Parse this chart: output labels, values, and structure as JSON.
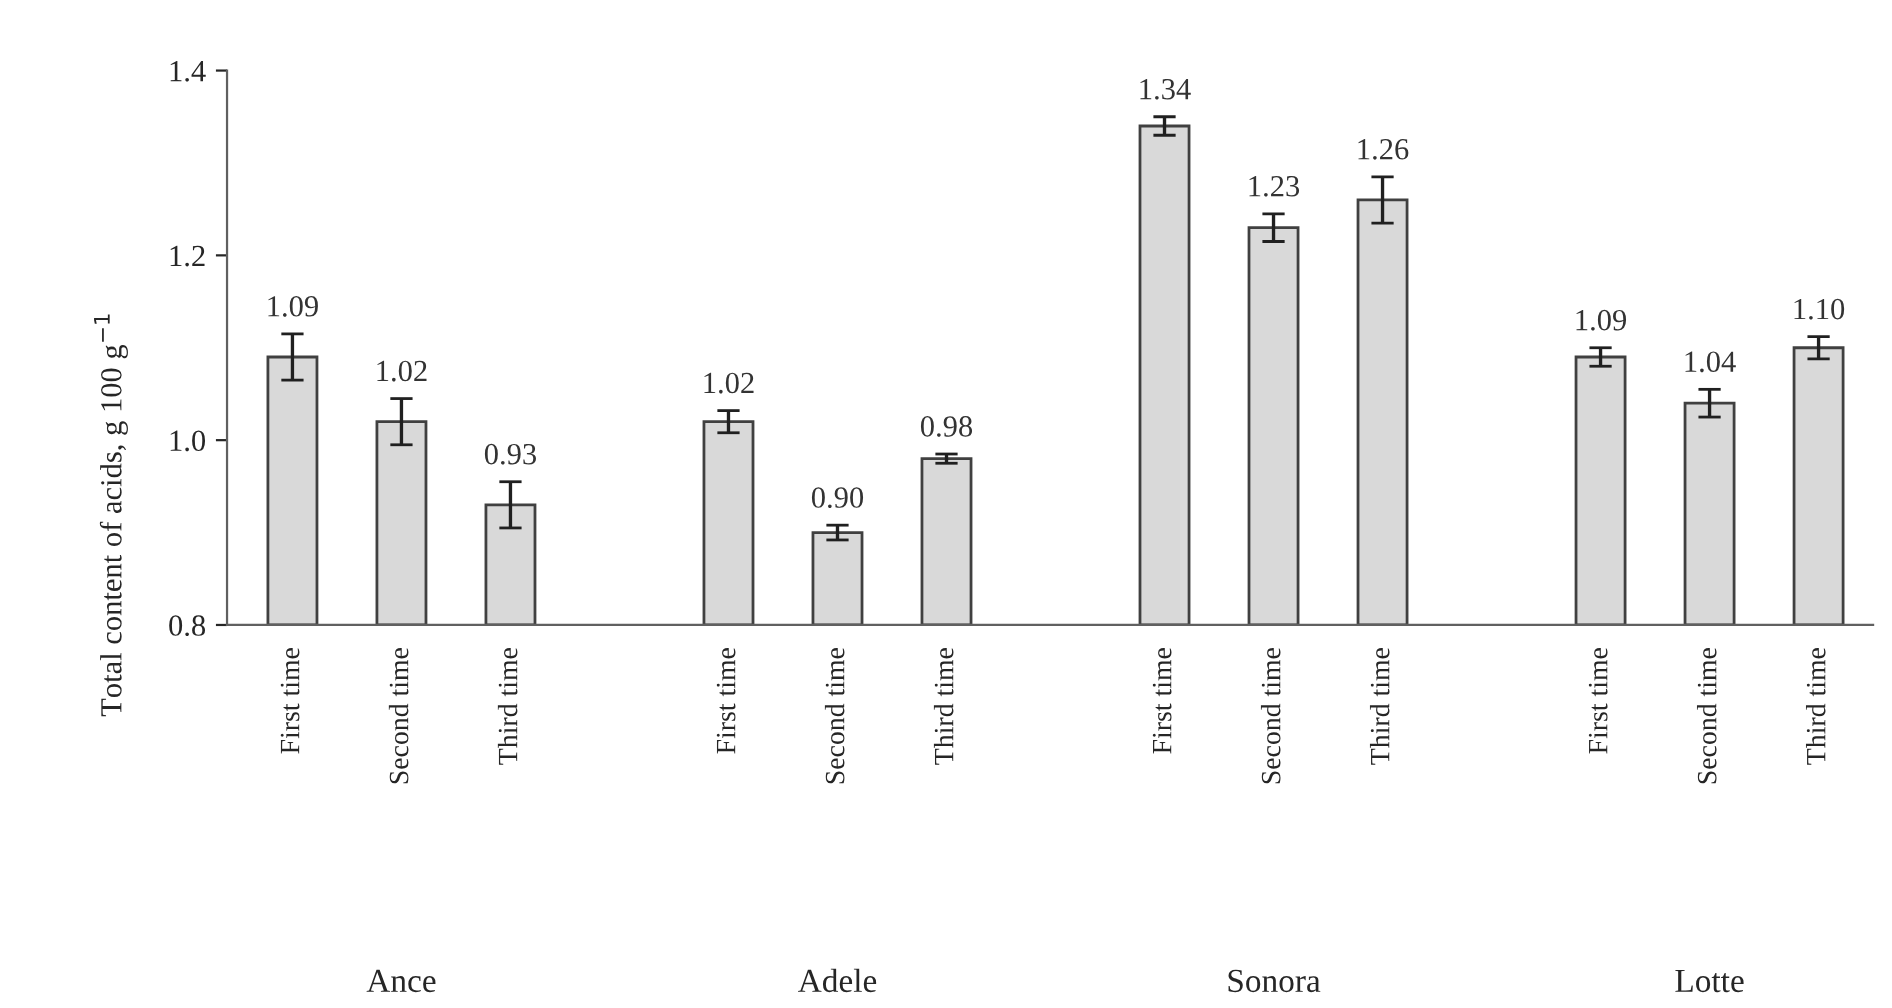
{
  "chart_data": {
    "type": "bar",
    "ylabel": "Total content of acids, g 100 g$^{−1}$",
    "categories": [
      "First time",
      "Second time",
      "Third time",
      null,
      "First time",
      "Second time",
      "Third time",
      null,
      "First time",
      "Second time",
      "Third time",
      null,
      "First time",
      "Second time",
      "Third time"
    ],
    "values": [
      1.09,
      1.02,
      0.93,
      null,
      1.02,
      0.9,
      0.98,
      null,
      1.34,
      1.23,
      1.26,
      null,
      1.09,
      1.04,
      1.1
    ],
    "errors": [
      0.025,
      0.025,
      0.025,
      null,
      0.012,
      0.008,
      0.005,
      null,
      0.01,
      0.015,
      0.025,
      null,
      0.01,
      0.015,
      0.012
    ],
    "value_labels": [
      "1.09",
      "1.02",
      "0.93",
      null,
      "1.02",
      "0.90",
      "0.98",
      null,
      "1.34",
      "1.23",
      "1.26",
      null,
      "1.09",
      "1.04",
      "1.10"
    ],
    "color": "#d9d9d9",
    "ylim": [
      0.8,
      1.4
    ],
    "yticks": [
      0.8,
      {
        "value": 1.0,
        "label": "1.0"
      },
      1.2,
      1.4
    ],
    "annotations": [
      "Ance",
      "Adele",
      "Sonora",
      "Lotte"
    ],
    "grid": false,
    "legend": false
  }
}
